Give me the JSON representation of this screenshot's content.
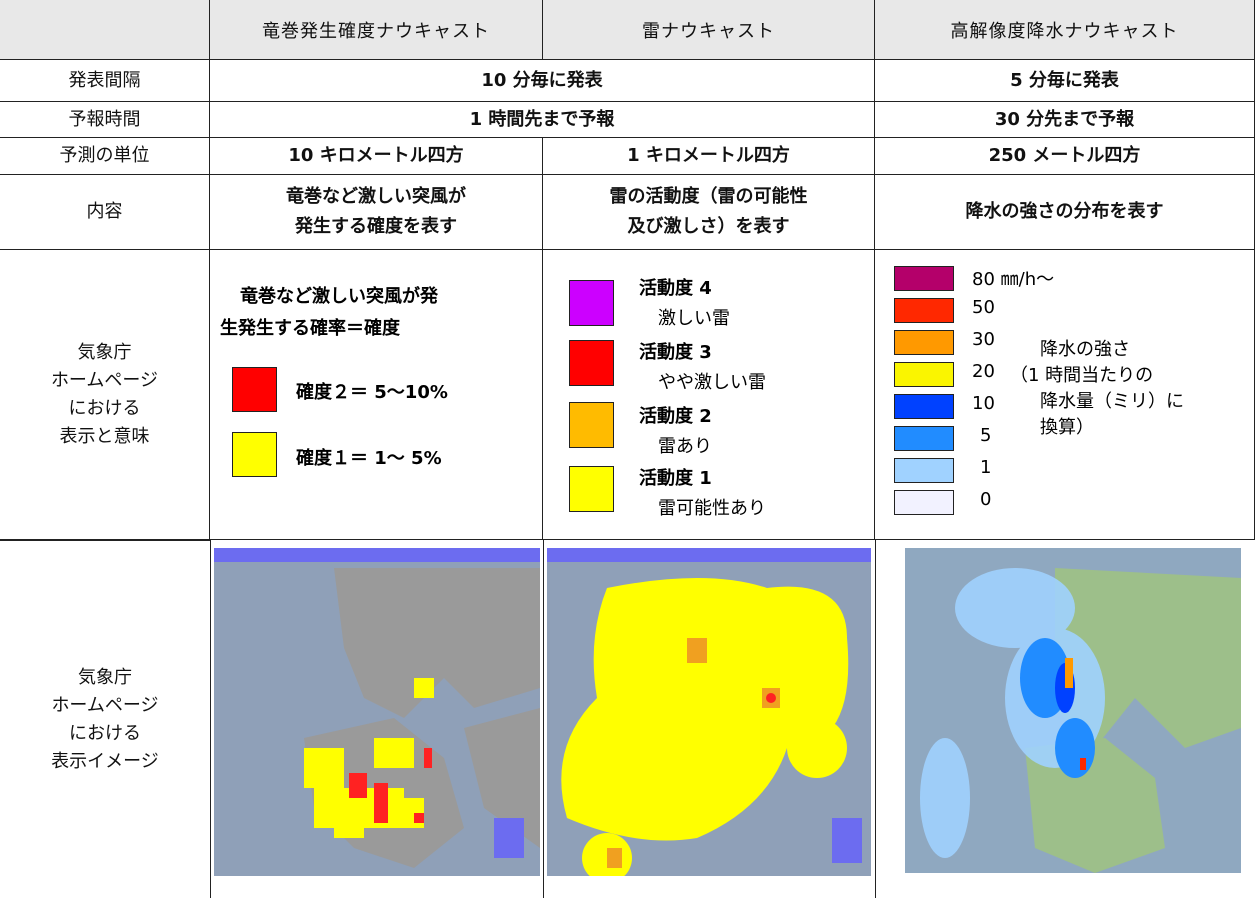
{
  "table": {
    "header": [
      "竜巻発生確度ナウキャスト",
      "雷ナウキャスト",
      "高解像度降水ナウキャスト"
    ],
    "rows": [
      {
        "label": "発表間隔",
        "cells": [
          "10 分毎に発表",
          "5 分毎に発表"
        ]
      },
      {
        "label": "予報時間",
        "cells": [
          "1 時間先まで予報",
          "30 分先まで予報"
        ]
      },
      {
        "label": "予測の単位",
        "cells": [
          "10 キロメートル四方",
          "1 キロメートル四方",
          "250 メートル四方"
        ]
      },
      {
        "label": "内容",
        "cells": [
          "竜巻など激しい突風が\n発生する確度を表す",
          "雷の活動度（雷の可能性\n及び激しさ）を表す",
          "降水の強さの分布を表す"
        ]
      },
      {
        "label": "気象庁\nホームページ\nにおける\n表示と意味"
      },
      {
        "label": "気象庁\nホームページ\nにおける\n表示イメージ"
      }
    ]
  },
  "tornado_legend": {
    "intro": [
      "竜巻など激しい突風が発",
      "生発生する確率＝確度"
    ],
    "items": [
      {
        "color": "#ff0000",
        "label": "確度２＝ 5～10%"
      },
      {
        "color": "#ffff00",
        "label": "確度１＝ 1～ 5%"
      }
    ]
  },
  "thunder_legend": {
    "items": [
      {
        "color": "#cc00ff",
        "level": "活動度 4",
        "desc": "激しい雷"
      },
      {
        "color": "#ff0000",
        "level": "活動度 3",
        "desc": "やや激しい雷"
      },
      {
        "color": "#ffbb00",
        "level": "活動度 2",
        "desc": "雷あり"
      },
      {
        "color": "#ffff00",
        "level": "活動度 1",
        "desc": "雷可能性あり"
      }
    ]
  },
  "rain_legend": {
    "items": [
      {
        "color": "#b4006a",
        "label": "80 ㎜/h～"
      },
      {
        "color": "#ff2800",
        "label": "50"
      },
      {
        "color": "#ff9900",
        "label": "30"
      },
      {
        "color": "#faf500",
        "label": "20"
      },
      {
        "color": "#0041ff",
        "label": "10"
      },
      {
        "color": "#218cff",
        "label": "5"
      },
      {
        "color": "#a0d2ff",
        "label": "1"
      },
      {
        "color": "#f2f2ff",
        "label": "0"
      }
    ],
    "note": [
      "降水の強さ",
      "（1 時間当たりの",
      "降水量（ミリ）に",
      "換算）"
    ]
  }
}
